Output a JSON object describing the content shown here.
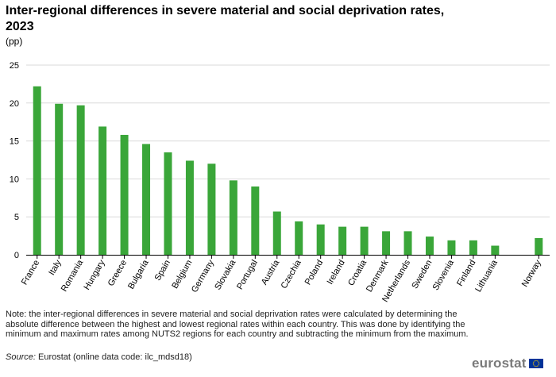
{
  "title": "Inter-regional differences in severe material and social deprivation rates, 2023",
  "unit": "(pp)",
  "note": "Note: the inter-regional differences in severe material and social deprivation rates were calculated by determining the absolute difference between the highest and lowest regional rates within each country. This was done by identifying the minimum and maximum rates among NUTS2 regions for each country and subtracting the minimum from the maximum.",
  "source_label": "Source:",
  "source_text": "Eurostat (online data code: ilc_mdsd18)",
  "logo_text": "eurostat",
  "colors": {
    "bar": "#3aa639",
    "grid": "#d9d9d9",
    "axis": "#000000",
    "flag_blue": "#003399",
    "flag_star": "#ffcc00"
  },
  "chart_data": {
    "type": "bar",
    "categories": [
      "France",
      "Italy",
      "Romania",
      "Hungary",
      "Greece",
      "Bulgaria",
      "Spain",
      "Belgium",
      "Germany",
      "Slovakia",
      "Portugal",
      "Austria",
      "Czechia",
      "Poland",
      "Ireland",
      "Croatia",
      "Denmark",
      "Netherlands",
      "Sweden",
      "Slovenia",
      "Finland",
      "Lithuania",
      "",
      "Norway"
    ],
    "values": [
      22.2,
      19.9,
      19.7,
      16.9,
      15.8,
      14.6,
      13.5,
      12.4,
      12.0,
      9.8,
      9.0,
      5.7,
      4.4,
      4.0,
      3.7,
      3.7,
      3.1,
      3.1,
      2.4,
      1.9,
      1.9,
      1.2,
      null,
      2.2
    ],
    "yticks": [
      0,
      5,
      10,
      15,
      20,
      25
    ],
    "ylim": [
      0,
      25
    ],
    "xlabel": "",
    "ylabel": "pp",
    "grid": true
  }
}
